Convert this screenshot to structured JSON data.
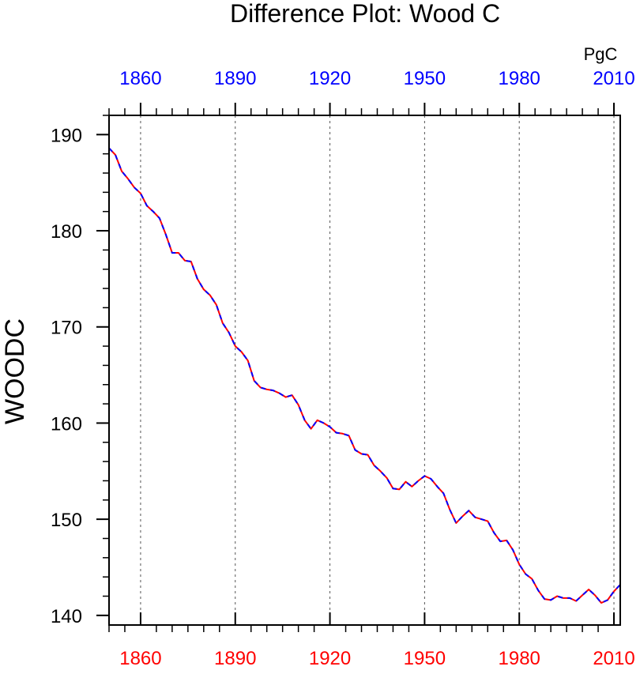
{
  "chart_data": {
    "type": "line",
    "title": "Difference Plot: Wood C",
    "ylabel": "WOODC",
    "units": "PgC",
    "xlim": [
      1850,
      2012
    ],
    "ylim": [
      139,
      192
    ],
    "xticks": [
      1860,
      1890,
      1920,
      1950,
      1980,
      2010
    ],
    "yticks": [
      140,
      150,
      160,
      170,
      180,
      190
    ],
    "grid": "vertical dashed lines at x ticks",
    "colors": {
      "bottom_axis_labels": "#ff0000",
      "top_axis_labels": "#0000ff",
      "series_a": "#ff0000",
      "series_b": "#0000ff"
    },
    "series": [
      {
        "style": "solid",
        "color": "#ff0000",
        "x": [
          1850,
          1852,
          1854,
          1856,
          1858,
          1860,
          1862,
          1864,
          1866,
          1868,
          1870,
          1872,
          1874,
          1876,
          1878,
          1880,
          1882,
          1884,
          1886,
          1888,
          1890,
          1892,
          1894,
          1896,
          1898,
          1900,
          1902,
          1904,
          1906,
          1908,
          1910,
          1912,
          1914,
          1916,
          1918,
          1920,
          1922,
          1924,
          1926,
          1928,
          1930,
          1932,
          1934,
          1936,
          1938,
          1940,
          1942,
          1944,
          1946,
          1948,
          1950,
          1952,
          1954,
          1956,
          1958,
          1960,
          1962,
          1964,
          1966,
          1968,
          1970,
          1972,
          1974,
          1976,
          1978,
          1980,
          1982,
          1984,
          1986,
          1988,
          1990,
          1992,
          1994,
          1996,
          1998,
          2000,
          2002,
          2004,
          2006,
          2008,
          2010,
          2012
        ],
        "y": [
          188.6,
          187.9,
          186.2,
          185.4,
          184.5,
          183.9,
          182.6,
          182.0,
          181.3,
          179.6,
          177.7,
          177.7,
          176.9,
          176.8,
          175.0,
          173.9,
          173.3,
          172.3,
          170.4,
          169.4,
          168.0,
          167.4,
          166.5,
          164.4,
          163.7,
          163.5,
          163.4,
          163.1,
          162.7,
          162.9,
          161.9,
          160.3,
          159.4,
          160.3,
          160.0,
          159.6,
          159.0,
          158.9,
          158.7,
          157.2,
          156.8,
          156.7,
          155.6,
          155.0,
          154.3,
          153.2,
          153.1,
          153.9,
          153.4,
          154.0,
          154.5,
          154.2,
          153.4,
          152.7,
          151.0,
          149.6,
          150.3,
          150.9,
          150.2,
          150.0,
          149.8,
          148.6,
          147.7,
          147.8,
          146.8,
          145.3,
          144.3,
          143.8,
          142.6,
          141.7,
          141.6,
          142.0,
          141.8,
          141.8,
          141.5,
          142.1,
          142.7,
          142.1,
          141.3,
          141.6,
          142.5,
          143.2
        ]
      },
      {
        "style": "dashed",
        "color": "#0000ff",
        "x": [
          1850,
          1852,
          1854,
          1856,
          1858,
          1860,
          1862,
          1864,
          1866,
          1868,
          1870,
          1872,
          1874,
          1876,
          1878,
          1880,
          1882,
          1884,
          1886,
          1888,
          1890,
          1892,
          1894,
          1896,
          1898,
          1900,
          1902,
          1904,
          1906,
          1908,
          1910,
          1912,
          1914,
          1916,
          1918,
          1920,
          1922,
          1924,
          1926,
          1928,
          1930,
          1932,
          1934,
          1936,
          1938,
          1940,
          1942,
          1944,
          1946,
          1948,
          1950,
          1952,
          1954,
          1956,
          1958,
          1960,
          1962,
          1964,
          1966,
          1968,
          1970,
          1972,
          1974,
          1976,
          1978,
          1980,
          1982,
          1984,
          1986,
          1988,
          1990,
          1992,
          1994,
          1996,
          1998,
          2000,
          2002,
          2004,
          2006,
          2008,
          2010,
          2012
        ],
        "y": [
          188.6,
          187.9,
          186.2,
          185.4,
          184.5,
          183.9,
          182.6,
          182.0,
          181.3,
          179.6,
          177.7,
          177.7,
          176.9,
          176.8,
          175.0,
          173.9,
          173.3,
          172.3,
          170.4,
          169.4,
          168.0,
          167.4,
          166.5,
          164.4,
          163.7,
          163.5,
          163.4,
          163.1,
          162.7,
          162.9,
          161.9,
          160.3,
          159.4,
          160.3,
          160.0,
          159.6,
          159.0,
          158.9,
          158.7,
          157.2,
          156.8,
          156.7,
          155.6,
          155.0,
          154.3,
          153.2,
          153.1,
          153.9,
          153.4,
          154.0,
          154.5,
          154.2,
          153.4,
          152.7,
          151.0,
          149.6,
          150.3,
          150.9,
          150.2,
          150.0,
          149.8,
          148.6,
          147.7,
          147.8,
          146.8,
          145.3,
          144.3,
          143.8,
          142.6,
          141.7,
          141.6,
          142.0,
          141.8,
          141.8,
          141.5,
          142.1,
          142.7,
          142.1,
          141.3,
          141.6,
          142.5,
          143.2
        ]
      }
    ]
  }
}
